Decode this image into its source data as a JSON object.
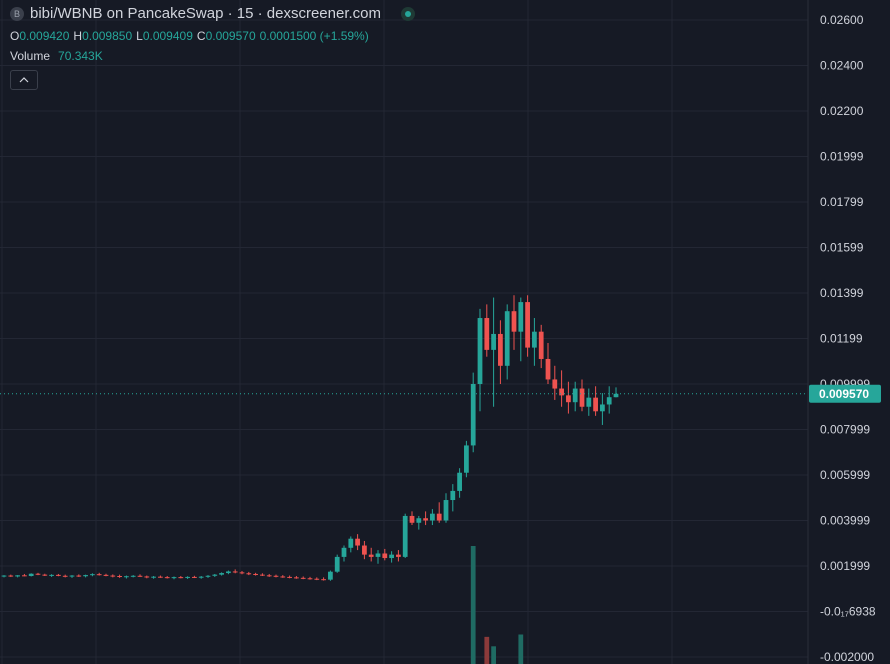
{
  "legend": {
    "token_logo": "B",
    "title": "bibi/WBNB on PancakeSwap · 15 · dexscreener.com",
    "open_key": "O",
    "open": "0.009420",
    "high_key": "H",
    "high": "0.009850",
    "low_key": "L",
    "low": "0.009409",
    "close_key": "C",
    "close": "0.009570",
    "change": "0.0001500 (+1.59%)",
    "volume_label": "Volume",
    "volume_value": "70.343K",
    "collapse_icon": "chevron-up-icon"
  },
  "colors": {
    "background": "#161a25",
    "up": "#26a69a",
    "down": "#ef5350",
    "grid": "#232734",
    "text": "#d1d4dc"
  },
  "price_axis": {
    "ticks": [
      {
        "label": "0.02600",
        "value": 0.026
      },
      {
        "label": "0.02400",
        "value": 0.024
      },
      {
        "label": "0.02200",
        "value": 0.022
      },
      {
        "label": "0.01999",
        "value": 0.02
      },
      {
        "label": "0.01799",
        "value": 0.018
      },
      {
        "label": "0.01599",
        "value": 0.016
      },
      {
        "label": "0.01399",
        "value": 0.014
      },
      {
        "label": "0.01199",
        "value": 0.012
      },
      {
        "label": "0.009999",
        "value": 0.01
      },
      {
        "label": "0.007999",
        "value": 0.008
      },
      {
        "label": "0.005999",
        "value": 0.006
      },
      {
        "label": "0.003999",
        "value": 0.004
      },
      {
        "label": "0.001999",
        "value": 0.002
      },
      {
        "label": "-0.0₁₇6938",
        "value": 0.0
      },
      {
        "label": "-0.002000",
        "value": -0.002
      }
    ],
    "current_price": "0.009570",
    "current_value": 0.00957
  },
  "chart_data": {
    "type": "candlestick",
    "timeframe": "15",
    "ylim": [
      -0.002,
      0.026
    ],
    "candles": [
      [
        0.00155,
        0.0016,
        0.0015,
        0.00158
      ],
      [
        0.00158,
        0.00162,
        0.00152,
        0.00154
      ],
      [
        0.00154,
        0.0016,
        0.0015,
        0.00159
      ],
      [
        0.00159,
        0.00165,
        0.00155,
        0.00156
      ],
      [
        0.00156,
        0.00168,
        0.00154,
        0.00166
      ],
      [
        0.00166,
        0.0017,
        0.0016,
        0.00162
      ],
      [
        0.00162,
        0.00166,
        0.00156,
        0.00158
      ],
      [
        0.00158,
        0.00164,
        0.00152,
        0.00161
      ],
      [
        0.00161,
        0.00165,
        0.00155,
        0.00157
      ],
      [
        0.00157,
        0.00162,
        0.0015,
        0.00154
      ],
      [
        0.00154,
        0.0016,
        0.00148,
        0.00158
      ],
      [
        0.00158,
        0.00163,
        0.00152,
        0.00155
      ],
      [
        0.00155,
        0.00162,
        0.0015,
        0.0016
      ],
      [
        0.0016,
        0.00168,
        0.00155,
        0.00164
      ],
      [
        0.00164,
        0.0017,
        0.00158,
        0.00161
      ],
      [
        0.00161,
        0.00166,
        0.00155,
        0.00158
      ],
      [
        0.00158,
        0.00163,
        0.0015,
        0.00156
      ],
      [
        0.00156,
        0.00162,
        0.00148,
        0.00152
      ],
      [
        0.00152,
        0.00158,
        0.00145,
        0.00155
      ],
      [
        0.00155,
        0.0016,
        0.0015,
        0.00157
      ],
      [
        0.00157,
        0.00163,
        0.00152,
        0.00154
      ],
      [
        0.00154,
        0.00158,
        0.00146,
        0.0015
      ],
      [
        0.0015,
        0.00156,
        0.00144,
        0.00153
      ],
      [
        0.00153,
        0.00158,
        0.00148,
        0.00151
      ],
      [
        0.00151,
        0.00156,
        0.00145,
        0.00148
      ],
      [
        0.00148,
        0.00154,
        0.00142,
        0.00151
      ],
      [
        0.00151,
        0.00156,
        0.00146,
        0.00149
      ],
      [
        0.00149,
        0.00155,
        0.00143,
        0.00152
      ],
      [
        0.00152,
        0.00157,
        0.00147,
        0.0015
      ],
      [
        0.0015,
        0.00156,
        0.00144,
        0.00153
      ],
      [
        0.00153,
        0.0016,
        0.00148,
        0.00157
      ],
      [
        0.00157,
        0.00165,
        0.00152,
        0.00162
      ],
      [
        0.00162,
        0.00172,
        0.00158,
        0.00169
      ],
      [
        0.00169,
        0.0018,
        0.00164,
        0.00176
      ],
      [
        0.00176,
        0.00185,
        0.00168,
        0.00172
      ],
      [
        0.00172,
        0.00178,
        0.00164,
        0.00168
      ],
      [
        0.00168,
        0.00174,
        0.0016,
        0.00165
      ],
      [
        0.00165,
        0.0017,
        0.00158,
        0.00162
      ],
      [
        0.00162,
        0.00168,
        0.00156,
        0.00159
      ],
      [
        0.00159,
        0.00165,
        0.00152,
        0.00157
      ],
      [
        0.00157,
        0.00162,
        0.0015,
        0.00154
      ],
      [
        0.00154,
        0.0016,
        0.00148,
        0.00152
      ],
      [
        0.00152,
        0.00158,
        0.00146,
        0.0015
      ],
      [
        0.0015,
        0.00156,
        0.00144,
        0.00148
      ],
      [
        0.00148,
        0.00154,
        0.00142,
        0.00146
      ],
      [
        0.00146,
        0.00152,
        0.0014,
        0.00144
      ],
      [
        0.00144,
        0.0015,
        0.00138,
        0.00142
      ],
      [
        0.00142,
        0.0015,
        0.00136,
        0.0014
      ],
      [
        0.0014,
        0.0018,
        0.00135,
        0.00175
      ],
      [
        0.00175,
        0.0025,
        0.0017,
        0.0024
      ],
      [
        0.0024,
        0.0029,
        0.0022,
        0.0028
      ],
      [
        0.0028,
        0.0033,
        0.0026,
        0.0032
      ],
      [
        0.0032,
        0.0034,
        0.0027,
        0.0029
      ],
      [
        0.0029,
        0.0031,
        0.0023,
        0.0025
      ],
      [
        0.0025,
        0.0028,
        0.0022,
        0.0024
      ],
      [
        0.0024,
        0.0027,
        0.0021,
        0.00255
      ],
      [
        0.00255,
        0.00275,
        0.00225,
        0.00235
      ],
      [
        0.00235,
        0.00265,
        0.00215,
        0.0025
      ],
      [
        0.0025,
        0.0027,
        0.0022,
        0.0024
      ],
      [
        0.0024,
        0.0043,
        0.00235,
        0.0042
      ],
      [
        0.0042,
        0.0044,
        0.0038,
        0.0039
      ],
      [
        0.0039,
        0.0042,
        0.0036,
        0.0041
      ],
      [
        0.0041,
        0.0044,
        0.0038,
        0.004
      ],
      [
        0.004,
        0.0045,
        0.0038,
        0.0043
      ],
      [
        0.0043,
        0.0048,
        0.0039,
        0.004
      ],
      [
        0.004,
        0.0052,
        0.0039,
        0.0049
      ],
      [
        0.0049,
        0.0056,
        0.0044,
        0.0053
      ],
      [
        0.0053,
        0.0063,
        0.005,
        0.0061
      ],
      [
        0.0061,
        0.0075,
        0.0059,
        0.0073
      ],
      [
        0.0073,
        0.0105,
        0.007,
        0.01
      ],
      [
        0.01,
        0.0133,
        0.0088,
        0.0129
      ],
      [
        0.0129,
        0.0135,
        0.0112,
        0.0115
      ],
      [
        0.0115,
        0.0138,
        0.009,
        0.0122
      ],
      [
        0.0122,
        0.0128,
        0.01,
        0.0108
      ],
      [
        0.0108,
        0.0135,
        0.0102,
        0.0132
      ],
      [
        0.0132,
        0.0139,
        0.0115,
        0.0123
      ],
      [
        0.0123,
        0.0138,
        0.011,
        0.0136
      ],
      [
        0.0136,
        0.0139,
        0.0112,
        0.0116
      ],
      [
        0.0116,
        0.0129,
        0.0108,
        0.0123
      ],
      [
        0.0123,
        0.0126,
        0.0107,
        0.0111
      ],
      [
        0.0111,
        0.0118,
        0.01,
        0.0102
      ],
      [
        0.0102,
        0.0108,
        0.0093,
        0.0098
      ],
      [
        0.0098,
        0.0106,
        0.009,
        0.0095
      ],
      [
        0.0095,
        0.0101,
        0.0087,
        0.0092
      ],
      [
        0.0092,
        0.0101,
        0.0088,
        0.0098
      ],
      [
        0.0098,
        0.0102,
        0.0088,
        0.009
      ],
      [
        0.009,
        0.0098,
        0.0086,
        0.0094
      ],
      [
        0.0094,
        0.0099,
        0.0086,
        0.0088
      ],
      [
        0.0088,
        0.0096,
        0.0082,
        0.0091
      ],
      [
        0.0091,
        0.0099,
        0.0087,
        0.00942
      ],
      [
        0.00942,
        0.00985,
        0.00941,
        0.00957
      ]
    ],
    "volumes": [
      {
        "index": 69,
        "value": 1.0
      },
      {
        "index": 71,
        "value": 0.23
      },
      {
        "index": 72,
        "value": 0.15
      },
      {
        "index": 76,
        "value": 0.25
      }
    ]
  }
}
